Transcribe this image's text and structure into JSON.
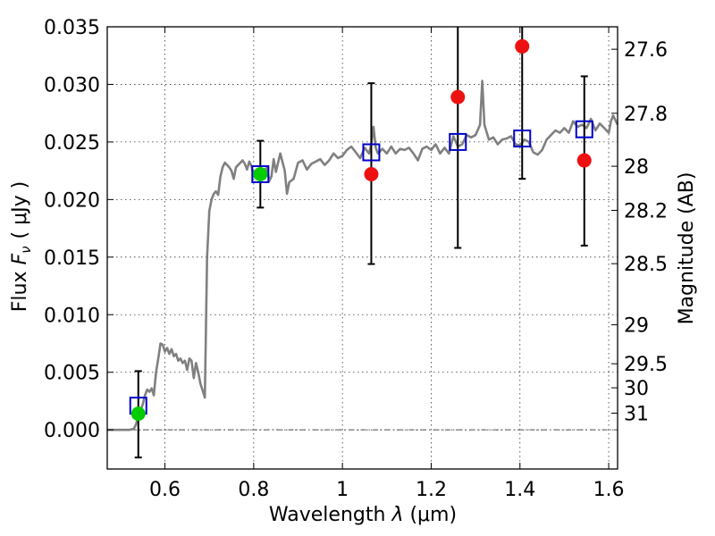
{
  "chart_data": {
    "type": "scatter",
    "xlabel_prefix": "Wavelength",
    "xlabel_symbol": "λ",
    "xlabel_unit": "(μm)",
    "ylabel_prefix": "Flux",
    "ylabel_symbol_main": "F",
    "ylabel_symbol_sub": "ν",
    "ylabel_unit": "( μJy )",
    "y2label": "Magnitude (AB)",
    "xlim": [
      0.47,
      1.62
    ],
    "ylim": [
      -0.0034,
      0.035
    ],
    "x_ticks": [
      0.6,
      0.8,
      1.0,
      1.2,
      1.4,
      1.6
    ],
    "x_tick_labels": [
      "0.6",
      "0.8",
      "1",
      "1.2",
      "1.4",
      "1.6"
    ],
    "y_ticks": [
      0.0,
      0.005,
      0.01,
      0.015,
      0.02,
      0.025,
      0.03,
      0.035
    ],
    "y_tick_labels": [
      "0.000",
      "0.005",
      "0.010",
      "0.015",
      "0.020",
      "0.025",
      "0.030",
      "0.035"
    ],
    "mag_ticks": [
      {
        "label": "27.6",
        "flux": 0.03305
      },
      {
        "label": "27.8",
        "flux": 0.02749
      },
      {
        "label": "28",
        "flux": 0.02289
      },
      {
        "label": "28.2",
        "flux": 0.01906
      },
      {
        "label": "28.5",
        "flux": 0.01443
      },
      {
        "label": "29",
        "flux": 0.00912
      },
      {
        "label": "29.5",
        "flux": 0.00574
      },
      {
        "label": "30",
        "flux": 0.00365
      },
      {
        "label": "31",
        "flux": 0.00145
      }
    ],
    "zero_line": {
      "y": 0.0,
      "style": "dash-dot"
    },
    "series": [
      {
        "name": "Model template spectrum",
        "kind": "line",
        "color": "#808080",
        "x": [
          0.47,
          0.5,
          0.52,
          0.53,
          0.535,
          0.54,
          0.55,
          0.555,
          0.56,
          0.565,
          0.57,
          0.575,
          0.58,
          0.585,
          0.59,
          0.595,
          0.6,
          0.605,
          0.61,
          0.615,
          0.62,
          0.625,
          0.63,
          0.635,
          0.64,
          0.645,
          0.65,
          0.655,
          0.66,
          0.665,
          0.67,
          0.675,
          0.68,
          0.685,
          0.69,
          0.695,
          0.7,
          0.705,
          0.71,
          0.715,
          0.72,
          0.725,
          0.73,
          0.735,
          0.74,
          0.745,
          0.75,
          0.755,
          0.76,
          0.765,
          0.77,
          0.775,
          0.78,
          0.785,
          0.79,
          0.795,
          0.8,
          0.805,
          0.81,
          0.815,
          0.82,
          0.825,
          0.83,
          0.835,
          0.84,
          0.845,
          0.85,
          0.86,
          0.87,
          0.875,
          0.88,
          0.89,
          0.9,
          0.91,
          0.92,
          0.93,
          0.94,
          0.95,
          0.96,
          0.97,
          0.98,
          0.99,
          1.0,
          1.01,
          1.02,
          1.03,
          1.04,
          1.05,
          1.06,
          1.065,
          1.07,
          1.075,
          1.08,
          1.09,
          1.1,
          1.11,
          1.12,
          1.13,
          1.14,
          1.15,
          1.16,
          1.17,
          1.18,
          1.19,
          1.2,
          1.21,
          1.22,
          1.23,
          1.24,
          1.25,
          1.26,
          1.27,
          1.28,
          1.29,
          1.3,
          1.31,
          1.315,
          1.32,
          1.33,
          1.34,
          1.35,
          1.36,
          1.37,
          1.38,
          1.39,
          1.4,
          1.41,
          1.42,
          1.43,
          1.44,
          1.45,
          1.46,
          1.47,
          1.48,
          1.49,
          1.5,
          1.51,
          1.52,
          1.53,
          1.54,
          1.55,
          1.56,
          1.57,
          1.58,
          1.59,
          1.6,
          1.605,
          1.61,
          1.62
        ],
        "y": [
          0.0,
          0.0,
          0.0,
          0.0001,
          0.0005,
          0.0012,
          0.0022,
          0.003,
          0.0035,
          0.0033,
          0.0036,
          0.003,
          0.005,
          0.0062,
          0.0075,
          0.0074,
          0.0068,
          0.0071,
          0.0066,
          0.007,
          0.0064,
          0.0066,
          0.006,
          0.0062,
          0.0058,
          0.006,
          0.0052,
          0.0062,
          0.006,
          0.0045,
          0.0058,
          0.005,
          0.004,
          0.0034,
          0.0028,
          0.015,
          0.019,
          0.02,
          0.0205,
          0.0207,
          0.0204,
          0.022,
          0.0228,
          0.0232,
          0.023,
          0.0228,
          0.0225,
          0.0218,
          0.0228,
          0.023,
          0.0232,
          0.0234,
          0.0231,
          0.0226,
          0.0233,
          0.0229,
          0.022,
          0.0225,
          0.0222,
          0.0221,
          0.0223,
          0.0226,
          0.0228,
          0.0216,
          0.022,
          0.0235,
          0.0224,
          0.024,
          0.0225,
          0.0205,
          0.0215,
          0.0218,
          0.0232,
          0.0234,
          0.0226,
          0.0231,
          0.0233,
          0.0235,
          0.023,
          0.0234,
          0.024,
          0.0236,
          0.0238,
          0.0243,
          0.0246,
          0.0241,
          0.0236,
          0.0245,
          0.024,
          0.0248,
          0.0263,
          0.0245,
          0.024,
          0.0244,
          0.024,
          0.0246,
          0.024,
          0.0244,
          0.0243,
          0.0245,
          0.024,
          0.0234,
          0.0244,
          0.0246,
          0.0243,
          0.0248,
          0.024,
          0.0245,
          0.024,
          0.0255,
          0.0246,
          0.0248,
          0.0256,
          0.0254,
          0.0256,
          0.0265,
          0.0303,
          0.0265,
          0.0252,
          0.0254,
          0.0248,
          0.0252,
          0.0253,
          0.0255,
          0.0248,
          0.0247,
          0.0252,
          0.025,
          0.0241,
          0.0239,
          0.0243,
          0.0252,
          0.0256,
          0.026,
          0.0258,
          0.0262,
          0.0258,
          0.0268,
          0.0263,
          0.0265,
          0.0262,
          0.027,
          0.026,
          0.0266,
          0.0262,
          0.0258,
          0.0268,
          0.0273,
          0.0265
        ]
      },
      {
        "name": "Model photometry",
        "kind": "open-square",
        "color": "#0000cc",
        "x": [
          0.54,
          0.815,
          1.065,
          1.26,
          1.405,
          1.545
        ],
        "y": [
          0.0021,
          0.0222,
          0.0241,
          0.025,
          0.0253,
          0.0261
        ]
      },
      {
        "name": "Detections",
        "kind": "filled-circle",
        "color": "#00cc00",
        "x": [
          0.54,
          0.815
        ],
        "y": [
          0.0014,
          0.0222
        ]
      },
      {
        "name": "Observed flux",
        "kind": "filled-circle",
        "color": "#ee1111",
        "x": [
          1.065,
          1.26,
          1.405,
          1.545
        ],
        "y": [
          0.0222,
          0.0289,
          0.0333,
          0.0234
        ]
      },
      {
        "name": "Flux uncertainty",
        "kind": "errorbar",
        "color": "#000000",
        "x": [
          0.54,
          0.815,
          1.065,
          1.26,
          1.405,
          1.545
        ],
        "y_low": [
          -0.0024,
          0.0193,
          0.0144,
          0.0158,
          0.0218,
          0.016
        ],
        "y_high": [
          0.0051,
          0.0251,
          0.0301,
          0.035,
          0.035,
          0.0307
        ]
      }
    ]
  }
}
